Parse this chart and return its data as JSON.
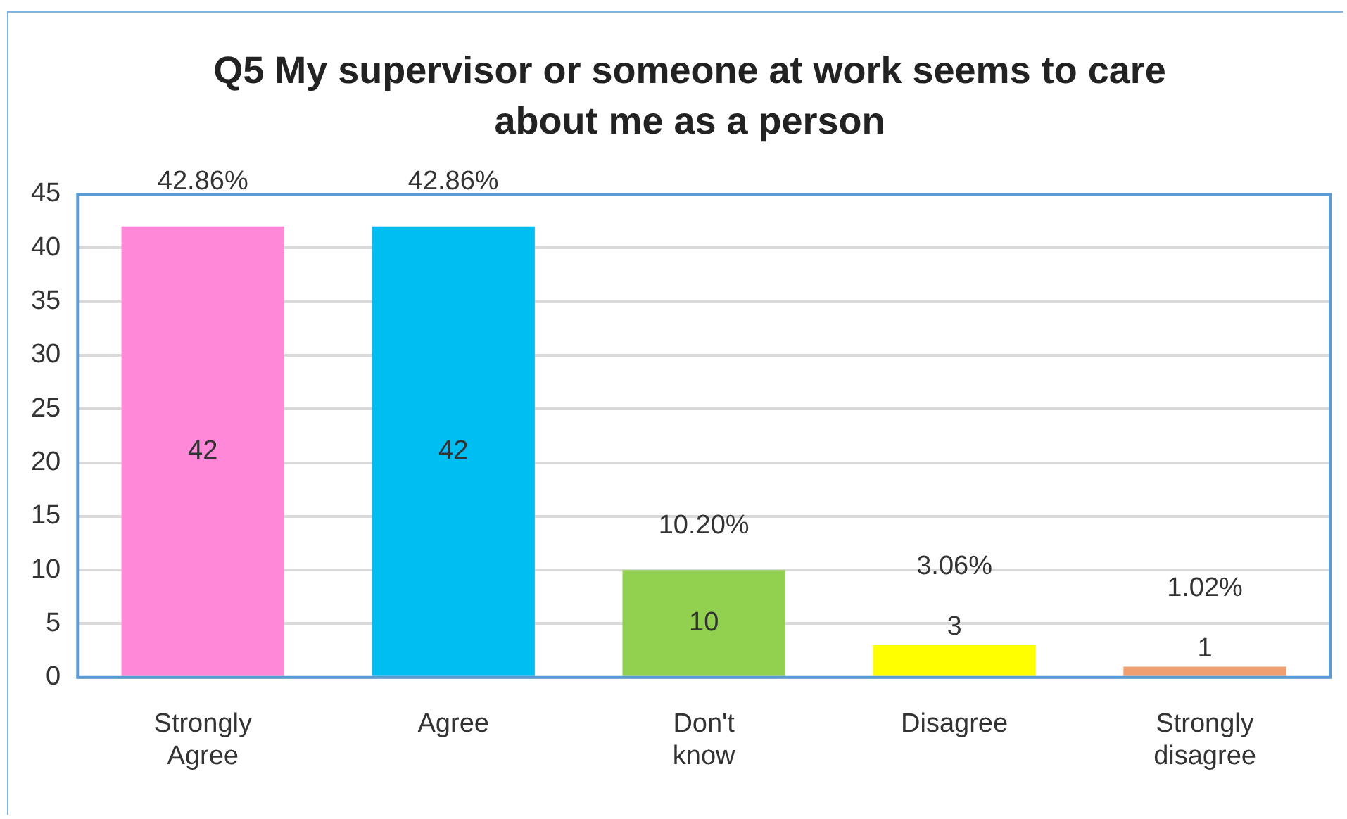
{
  "chart_data": {
    "type": "bar",
    "title": "Q5 My supervisor or someone at work seems to care about me as a person",
    "categories": [
      "Strongly Agree",
      "Agree",
      "Don't know",
      "Disagree",
      "Strongly disagree"
    ],
    "colors": [
      "#ff88d8",
      "#00bdf2",
      "#92d050",
      "#ffff00",
      "#f0a070"
    ],
    "values": [
      42,
      42,
      10,
      3,
      1
    ],
    "data_labels": true,
    "annotations": [
      {
        "text": "42.86%",
        "x": "Strongly Agree",
        "y": 42
      },
      {
        "text": "42.86%",
        "x": "Agree",
        "y": 42
      },
      {
        "text": "10.20%",
        "x": "Don't know",
        "y": 10
      },
      {
        "text": "3.06%",
        "x": "Disagree",
        "y": 3
      },
      {
        "text": "1.02%",
        "x": "Strongly disagree",
        "y": 1
      }
    ],
    "ylim": [
      0,
      45
    ],
    "yticks": [
      0,
      5,
      10,
      15,
      20,
      25,
      30,
      35,
      40,
      45
    ],
    "grid": "y",
    "legend": false
  }
}
